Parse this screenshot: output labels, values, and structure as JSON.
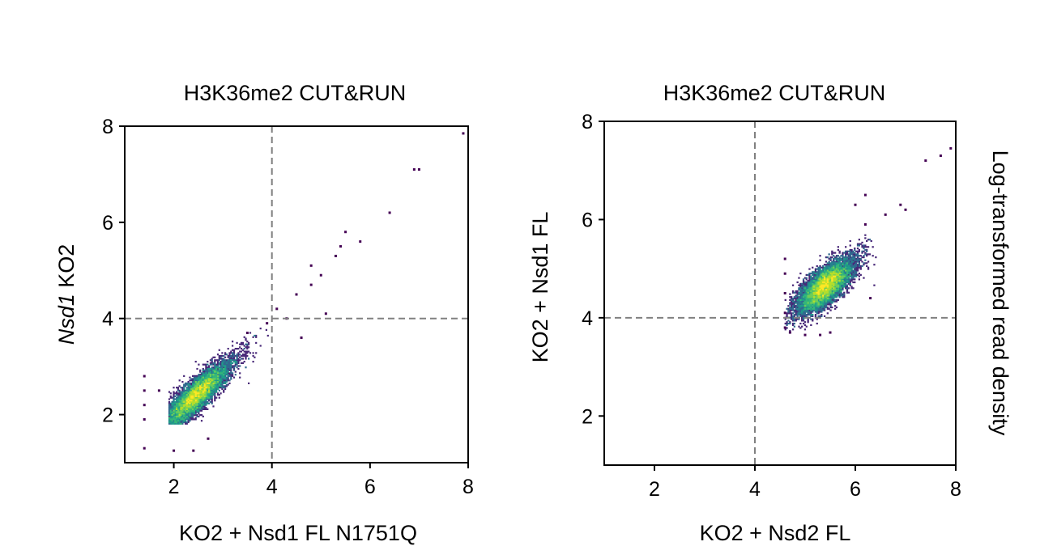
{
  "colors": {
    "guide_line": "#808080",
    "axis": "#000000",
    "colormap": [
      "#440154",
      "#482878",
      "#3e4a89",
      "#31688e",
      "#26828e",
      "#1f9e89",
      "#35b779",
      "#6ece58",
      "#b5de2b",
      "#fde725"
    ]
  },
  "colorbar_label": "Log-transformed read density",
  "chart_data": [
    {
      "type": "heatmap",
      "title": "H3K36me2 CUT&RUN",
      "xlabel": "KO2 + Nsd1 FL N1751Q",
      "ylabel_italic": "Nsd1",
      "ylabel_rest": " KO2",
      "xlim": [
        1,
        8
      ],
      "ylim": [
        1,
        8
      ],
      "xticks": [
        "2",
        "4",
        "6",
        "8"
      ],
      "yticks": [
        "2",
        "4",
        "6",
        "8"
      ],
      "tick_values": [
        2,
        4,
        6,
        8
      ],
      "guide_lines": {
        "x": 4,
        "y": 4
      },
      "density": {
        "description": "dense cloud along the diagonal",
        "core": {
          "x": 2.45,
          "y": 2.4
        },
        "spread_along_diagonal": 0.4,
        "spread_across_diagonal": 0.12,
        "range_x": [
          1.9,
          4.0
        ],
        "range_y": [
          1.8,
          4.0
        ]
      },
      "outliers": [
        {
          "x": 1.4,
          "y": 2.8
        },
        {
          "x": 1.4,
          "y": 2.5
        },
        {
          "x": 1.4,
          "y": 2.2
        },
        {
          "x": 1.4,
          "y": 1.9
        },
        {
          "x": 1.4,
          "y": 1.3
        },
        {
          "x": 1.7,
          "y": 2.5
        },
        {
          "x": 2.0,
          "y": 1.25
        },
        {
          "x": 2.4,
          "y": 1.25
        },
        {
          "x": 2.7,
          "y": 1.5
        },
        {
          "x": 3.5,
          "y": 3.7
        },
        {
          "x": 3.9,
          "y": 3.9
        },
        {
          "x": 4.1,
          "y": 4.2
        },
        {
          "x": 4.3,
          "y": 4.0
        },
        {
          "x": 4.5,
          "y": 4.5
        },
        {
          "x": 4.6,
          "y": 3.6
        },
        {
          "x": 4.8,
          "y": 4.7
        },
        {
          "x": 4.8,
          "y": 5.1
        },
        {
          "x": 5.0,
          "y": 4.9
        },
        {
          "x": 5.1,
          "y": 4.1
        },
        {
          "x": 5.3,
          "y": 5.3
        },
        {
          "x": 5.4,
          "y": 5.5
        },
        {
          "x": 5.5,
          "y": 5.8
        },
        {
          "x": 5.8,
          "y": 5.6
        },
        {
          "x": 6.4,
          "y": 6.2
        },
        {
          "x": 6.9,
          "y": 7.1
        },
        {
          "x": 7.0,
          "y": 7.1
        },
        {
          "x": 7.9,
          "y": 7.85
        }
      ]
    },
    {
      "type": "heatmap",
      "title": "H3K36me2 CUT&RUN",
      "xlabel": "KO2 + Nsd2 FL",
      "ylabel": "KO2 + Nsd1 FL",
      "xlim": [
        1,
        8
      ],
      "ylim": [
        1,
        8
      ],
      "xticks": [
        "2",
        "4",
        "6",
        "8"
      ],
      "yticks": [
        "2",
        "4",
        "6",
        "8"
      ],
      "tick_values": [
        2,
        4,
        6,
        8
      ],
      "guide_lines": {
        "x": 4,
        "y": 4
      },
      "density": {
        "description": "compact cloud",
        "core": {
          "x": 5.4,
          "y": 4.65
        },
        "spread_along_diagonal": 0.3,
        "spread_across_diagonal": 0.14,
        "range_x": [
          4.6,
          6.4
        ],
        "range_y": [
          3.7,
          5.9
        ]
      },
      "outliers": [
        {
          "x": 4.6,
          "y": 5.2
        },
        {
          "x": 4.6,
          "y": 4.9
        },
        {
          "x": 4.6,
          "y": 4.5
        },
        {
          "x": 4.6,
          "y": 4.1
        },
        {
          "x": 4.6,
          "y": 3.8
        },
        {
          "x": 4.7,
          "y": 3.7
        },
        {
          "x": 5.0,
          "y": 3.65
        },
        {
          "x": 5.3,
          "y": 3.65
        },
        {
          "x": 5.5,
          "y": 3.7
        },
        {
          "x": 6.3,
          "y": 4.4
        },
        {
          "x": 6.2,
          "y": 5.9
        },
        {
          "x": 6.0,
          "y": 6.3
        },
        {
          "x": 6.2,
          "y": 6.5
        },
        {
          "x": 6.6,
          "y": 6.1
        },
        {
          "x": 6.9,
          "y": 6.3
        },
        {
          "x": 7.0,
          "y": 6.2
        },
        {
          "x": 7.4,
          "y": 7.2
        },
        {
          "x": 7.7,
          "y": 7.3
        },
        {
          "x": 7.9,
          "y": 7.45
        }
      ]
    }
  ]
}
